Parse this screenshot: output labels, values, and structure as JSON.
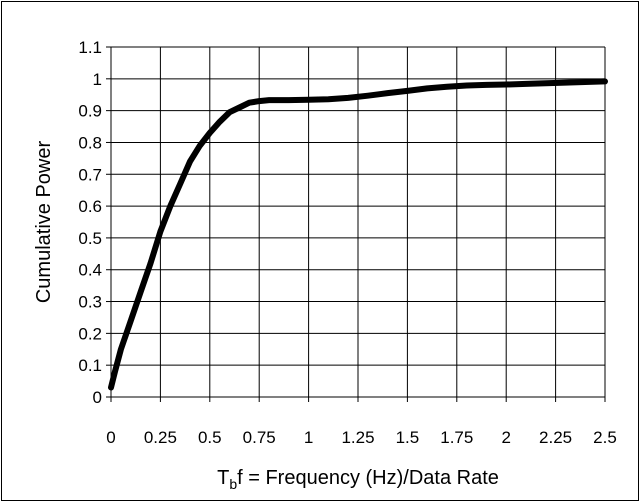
{
  "chart_data": {
    "type": "line",
    "title": "",
    "xlabel": {
      "main": "T",
      "sub": "b",
      "rest": "f = Frequency (Hz)/Data Rate"
    },
    "ylabel": "Cumulative Power",
    "xlim": [
      0,
      2.5
    ],
    "ylim": [
      0,
      1.1
    ],
    "x_ticks": [
      0,
      0.25,
      0.5,
      0.75,
      1,
      1.25,
      1.5,
      1.75,
      2,
      2.25,
      2.5
    ],
    "x_tick_labels": [
      "0",
      "0.25",
      "0.5",
      "0.75",
      "1",
      "1.25",
      "1.5",
      "1.75",
      "2",
      "2.25",
      "2.5"
    ],
    "y_ticks": [
      0,
      0.1,
      0.2,
      0.3,
      0.4,
      0.5,
      0.6,
      0.7,
      0.8,
      0.9,
      1,
      1.1
    ],
    "y_tick_labels": [
      "0",
      "0.1",
      "0.2",
      "0.3",
      "0.4",
      "0.5",
      "0.6",
      "0.7",
      "0.8",
      "0.9",
      "1",
      "1.1"
    ],
    "grid": true,
    "legend": "none",
    "series": [
      {
        "color": "#000000",
        "x": [
          0,
          0.02,
          0.05,
          0.1,
          0.15,
          0.2,
          0.25,
          0.3,
          0.35,
          0.4,
          0.45,
          0.5,
          0.55,
          0.6,
          0.65,
          0.7,
          0.75,
          0.8,
          0.9,
          1.0,
          1.1,
          1.2,
          1.3,
          1.4,
          1.5,
          1.6,
          1.7,
          1.8,
          1.9,
          2.0,
          2.1,
          2.2,
          2.3,
          2.4,
          2.5
        ],
        "y": [
          0.03,
          0.08,
          0.15,
          0.24,
          0.33,
          0.42,
          0.52,
          0.6,
          0.67,
          0.74,
          0.79,
          0.83,
          0.865,
          0.895,
          0.91,
          0.925,
          0.93,
          0.933,
          0.933,
          0.934,
          0.936,
          0.94,
          0.947,
          0.955,
          0.962,
          0.97,
          0.975,
          0.979,
          0.981,
          0.982,
          0.984,
          0.986,
          0.988,
          0.99,
          0.992
        ]
      }
    ]
  }
}
